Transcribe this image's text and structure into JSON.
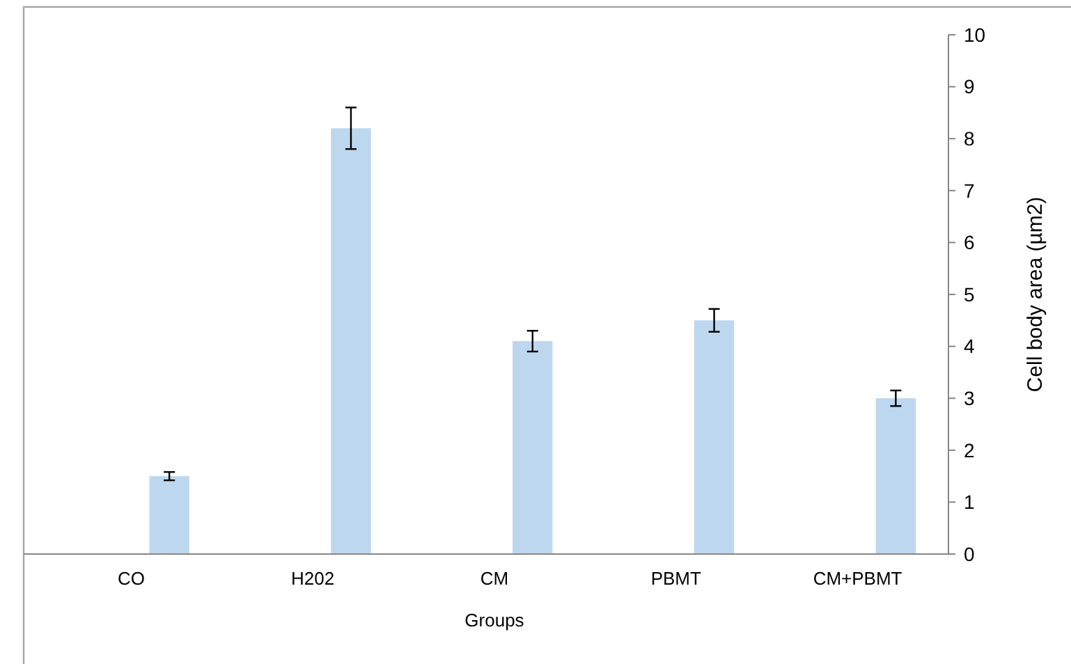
{
  "chart_data": {
    "type": "bar",
    "xlabel": "Groups",
    "ylabel": "Cell body area (µm2)",
    "categories": [
      "CO",
      "H202",
      "CM",
      "PBMT",
      "CM+PBMT"
    ],
    "values": [
      1.5,
      8.2,
      4.1,
      4.5,
      3.0
    ],
    "errors": [
      0.08,
      0.4,
      0.2,
      0.22,
      0.15
    ],
    "color": "#bdd7ee",
    "ylim": [
      0,
      10
    ],
    "yticks": [
      0,
      1,
      2,
      3,
      4,
      5,
      6,
      7,
      8,
      9,
      10
    ],
    "grid": false
  }
}
